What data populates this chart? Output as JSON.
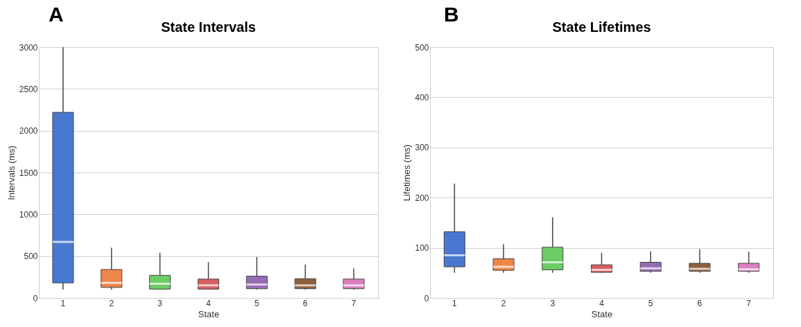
{
  "chart_data": [
    {
      "type": "box",
      "title": "State Intervals",
      "xlabel": "State",
      "ylabel": "Intervals (ms)",
      "annotations": [
        "A"
      ],
      "categories": [
        "1",
        "2",
        "3",
        "4",
        "5",
        "6",
        "7"
      ],
      "colors": [
        "#4878d0",
        "#ee854a",
        "#6acc64",
        "#d65f5f",
        "#956cb4",
        "#8c613c",
        "#dc7ec0"
      ],
      "ylim": [
        0,
        3000
      ],
      "yticks": [
        0,
        500,
        1000,
        1500,
        2000,
        2500,
        3000
      ],
      "grid": "y",
      "boxes": [
        {
          "low": 100,
          "q1": 180,
          "median": 670,
          "q3": 2220,
          "high": 3000
        },
        {
          "low": 100,
          "q1": 125,
          "median": 180,
          "q3": 340,
          "high": 600
        },
        {
          "low": 100,
          "q1": 105,
          "median": 170,
          "q3": 270,
          "high": 540
        },
        {
          "low": 100,
          "q1": 105,
          "median": 150,
          "q3": 225,
          "high": 430
        },
        {
          "low": 100,
          "q1": 110,
          "median": 160,
          "q3": 260,
          "high": 490
        },
        {
          "low": 100,
          "q1": 110,
          "median": 150,
          "q3": 230,
          "high": 400
        },
        {
          "low": 100,
          "q1": 110,
          "median": 150,
          "q3": 225,
          "high": 355
        }
      ]
    },
    {
      "type": "box",
      "title": "State Lifetimes",
      "xlabel": "State",
      "ylabel": "Lifetimes (ms)",
      "annotations": [
        "B"
      ],
      "categories": [
        "1",
        "2",
        "3",
        "4",
        "5",
        "6",
        "7"
      ],
      "colors": [
        "#4878d0",
        "#ee854a",
        "#6acc64",
        "#d65f5f",
        "#956cb4",
        "#8c613c",
        "#dc7ec0"
      ],
      "ylim": [
        0,
        500
      ],
      "yticks": [
        0,
        100,
        200,
        300,
        400,
        500
      ],
      "grid": "y",
      "boxes": [
        {
          "low": 50,
          "q1": 62,
          "median": 85,
          "q3": 132,
          "high": 228
        },
        {
          "low": 50,
          "q1": 55,
          "median": 62,
          "q3": 78,
          "high": 107
        },
        {
          "low": 50,
          "q1": 56,
          "median": 71,
          "q3": 101,
          "high": 161
        },
        {
          "low": 50,
          "q1": 51,
          "median": 56,
          "q3": 66,
          "high": 90
        },
        {
          "low": 50,
          "q1": 53,
          "median": 59,
          "q3": 71,
          "high": 93
        },
        {
          "low": 50,
          "q1": 53,
          "median": 58,
          "q3": 69,
          "high": 97
        },
        {
          "low": 50,
          "q1": 53,
          "median": 57,
          "q3": 69,
          "high": 92
        }
      ]
    }
  ]
}
